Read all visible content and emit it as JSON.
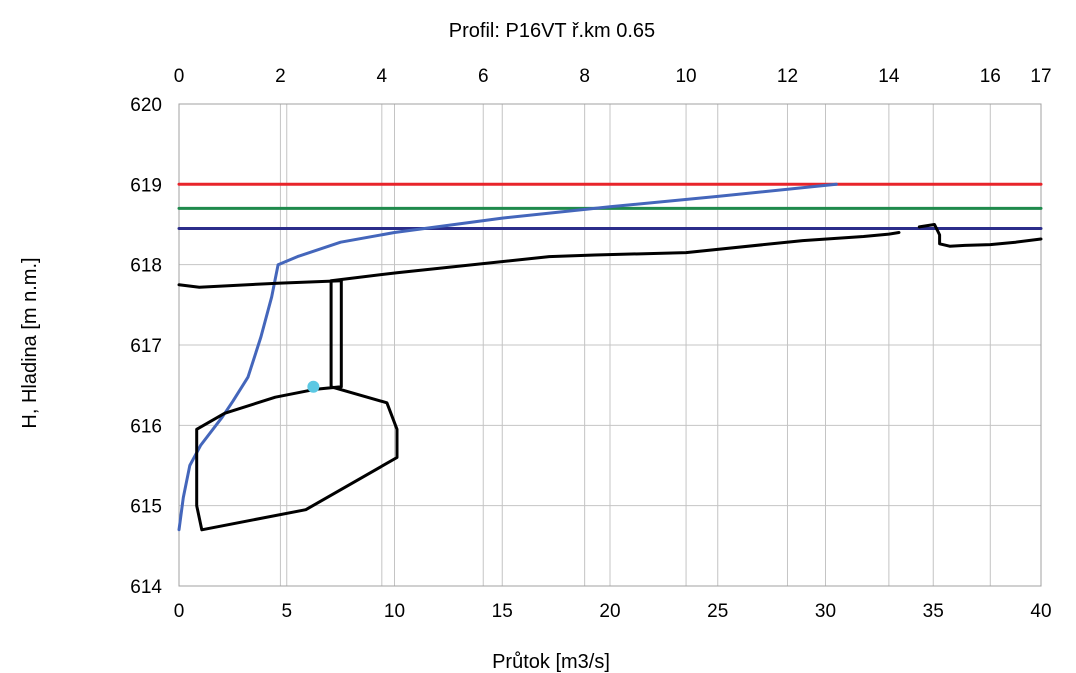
{
  "chart_data": {
    "type": "line",
    "title": "Profil: P16VT  ř.km 0.65",
    "xlabel": "Průtok [m3/s]",
    "ylabel": "H, Hladina [m n.m.]",
    "xlim": [
      0,
      40
    ],
    "ylim": [
      614,
      620
    ],
    "x2lim": [
      0,
      17
    ],
    "grid": true,
    "x_ticks": [
      "0",
      "5",
      "10",
      "15",
      "20",
      "25",
      "30",
      "35",
      "40"
    ],
    "x_tick_values": [
      0,
      5,
      10,
      15,
      20,
      25,
      30,
      35,
      40
    ],
    "x2_ticks": [
      "0",
      "2",
      "4",
      "6",
      "8",
      "10",
      "12",
      "14",
      "16",
      "17"
    ],
    "x2_tick_values": [
      0,
      2,
      4,
      6,
      8,
      10,
      12,
      14,
      16,
      17
    ],
    "y_ticks": [
      "614",
      "615",
      "616",
      "617",
      "618",
      "619",
      "620"
    ],
    "y_tick_values": [
      614,
      615,
      616,
      617,
      618,
      619,
      620
    ],
    "series": [
      {
        "color": "#e8242a",
        "axis": "bottom",
        "x": [
          0,
          40
        ],
        "y": [
          619.0,
          619.0
        ]
      },
      {
        "color": "#1f8a4c",
        "axis": "bottom",
        "x": [
          0,
          40
        ],
        "y": [
          618.7,
          618.7
        ]
      },
      {
        "color": "#2b2d8a",
        "axis": "bottom",
        "x": [
          0,
          40
        ],
        "y": [
          618.45,
          618.45
        ]
      },
      {
        "color": "#4466bb",
        "axis": "bottom",
        "x": [
          0,
          0.2,
          0.5,
          1.0,
          2.0,
          2.5,
          3.2,
          3.8,
          4.3,
          4.6,
          5.5,
          7.5,
          10,
          15,
          20,
          25,
          30.5
        ],
        "y": [
          614.7,
          615.1,
          615.5,
          615.75,
          616.1,
          616.3,
          616.6,
          617.1,
          617.6,
          618.0,
          618.1,
          618.28,
          618.4,
          618.58,
          618.72,
          618.85,
          619.0
        ]
      },
      {
        "color": "#000000",
        "axis": "top",
        "x": [
          0,
          0.4,
          2.0,
          3.2
        ],
        "y": [
          617.75,
          617.72,
          617.77,
          617.8
        ]
      },
      {
        "color": "#000000",
        "axis": "top",
        "x": [
          3.2,
          3.2,
          2.7,
          1.9,
          0.9,
          0.35,
          0.35,
          0.45,
          2.5,
          4.3,
          4.3,
          4.1,
          3.0,
          3.0,
          4.3,
          7.3,
          8.2,
          10.0,
          12.3,
          13.5,
          14.0,
          14.2
        ],
        "y": [
          617.8,
          616.48,
          616.45,
          616.35,
          616.15,
          615.95,
          615.0,
          614.7,
          614.95,
          615.6,
          615.95,
          616.28,
          616.48,
          617.8,
          617.9,
          618.1,
          618.12,
          618.15,
          618.3,
          618.35,
          618.38,
          618.4
        ]
      },
      {
        "color": "#000000",
        "axis": "top",
        "x": [
          14.6,
          14.9,
          15.0,
          15.0,
          15.2,
          15.5,
          16.0,
          16.5,
          17.0
        ],
        "y": [
          618.47,
          618.5,
          618.37,
          618.26,
          618.23,
          618.24,
          618.25,
          618.28,
          618.32
        ]
      }
    ],
    "marker": {
      "color": "#5bc8e3",
      "axis": "top",
      "x": 2.65,
      "y": 616.48
    }
  }
}
